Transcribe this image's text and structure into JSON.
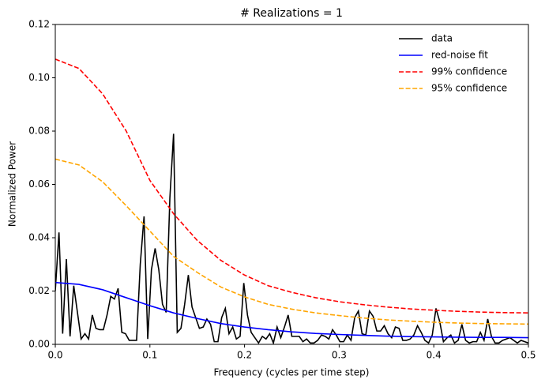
{
  "chart_data": {
    "type": "line",
    "title": "# Realizations = 1",
    "xlabel": "Frequency (cycles per time step)",
    "ylabel": "Normalized Power",
    "xlim": [
      0,
      0.5
    ],
    "ylim": [
      0,
      0.12
    ],
    "xticks": [
      {
        "value": 0,
        "label": "0.0"
      },
      0.1,
      0.2,
      0.3,
      0.4,
      0.5
    ],
    "yticks": [
      {
        "value": 0,
        "label": "0.00"
      },
      {
        "value": 0.02,
        "label": "0.02"
      },
      {
        "value": 0.04,
        "label": "0.04"
      },
      {
        "value": 0.06,
        "label": "0.06"
      },
      {
        "value": 0.08,
        "label": "0.08"
      },
      {
        "value": 0.1,
        "label": "0.10"
      },
      {
        "value": 0.12,
        "label": "0.12"
      }
    ],
    "grid": false,
    "legend": "upper right",
    "series": [
      {
        "name": "data",
        "color": "#000000",
        "dashed": false,
        "x": [
          0,
          0.0039,
          0.0078,
          0.0117,
          0.0156,
          0.0195,
          0.0234,
          0.0273,
          0.0313,
          0.0352,
          0.0391,
          0.043,
          0.0469,
          0.0508,
          0.0547,
          0.0586,
          0.0625,
          0.0664,
          0.0703,
          0.0742,
          0.0781,
          0.082,
          0.0859,
          0.0898,
          0.0938,
          0.0977,
          0.1016,
          0.1055,
          0.1094,
          0.1133,
          0.1172,
          0.1211,
          0.125,
          0.1289,
          0.1328,
          0.1367,
          0.1406,
          0.1445,
          0.1484,
          0.1523,
          0.1563,
          0.1602,
          0.1641,
          0.168,
          0.1719,
          0.1758,
          0.1797,
          0.1836,
          0.1875,
          0.1914,
          0.1953,
          0.1992,
          0.2031,
          0.207,
          0.2109,
          0.2148,
          0.2188,
          0.2227,
          0.2266,
          0.2305,
          0.2344,
          0.2383,
          0.2422,
          0.2461,
          0.25,
          0.2539,
          0.2578,
          0.2617,
          0.2656,
          0.2695,
          0.2734,
          0.2773,
          0.2813,
          0.2852,
          0.2891,
          0.293,
          0.2969,
          0.3008,
          0.3047,
          0.3086,
          0.3125,
          0.3164,
          0.3203,
          0.3242,
          0.3281,
          0.332,
          0.3359,
          0.3398,
          0.3438,
          0.3477,
          0.3516,
          0.3555,
          0.3594,
          0.3633,
          0.3672,
          0.3711,
          0.375,
          0.3789,
          0.3828,
          0.3867,
          0.3906,
          0.3945,
          0.3984,
          0.4023,
          0.4063,
          0.4102,
          0.4141,
          0.418,
          0.4219,
          0.4258,
          0.4297,
          0.4336,
          0.4375,
          0.4414,
          0.4453,
          0.4492,
          0.4531,
          0.457,
          0.4609,
          0.4648,
          0.4688,
          0.4727,
          0.4766,
          0.4805,
          0.4844,
          0.4883,
          0.4922,
          0.4961,
          0.5
        ],
        "values": [
          0.02,
          0.042,
          0.004,
          0.032,
          0.003,
          0.022,
          0.012,
          0.002,
          0.004,
          0.002,
          0.011,
          0.006,
          0.0055,
          0.0055,
          0.011,
          0.018,
          0.017,
          0.021,
          0.0045,
          0.004,
          0.0015,
          0.0015,
          0.0015,
          0.03,
          0.048,
          0.002,
          0.028,
          0.036,
          0.028,
          0.015,
          0.012,
          0.055,
          0.079,
          0.0045,
          0.006,
          0.015,
          0.026,
          0.014,
          0.01,
          0.006,
          0.0065,
          0.0095,
          0.0075,
          0.001,
          0.001,
          0.01,
          0.0135,
          0.004,
          0.0065,
          0.002,
          0.003,
          0.023,
          0.011,
          0.0045,
          0.0025,
          0.0005,
          0.003,
          0.002,
          0.004,
          0.0005,
          0.0065,
          0.0025,
          0.0065,
          0.011,
          0.003,
          0.003,
          0.003,
          0.001,
          0.002,
          0.0005,
          0.0005,
          0.0015,
          0.0035,
          0.003,
          0.002,
          0.0055,
          0.0035,
          0.001,
          0.001,
          0.0035,
          0.0015,
          0.01,
          0.0125,
          0.004,
          0.0035,
          0.0125,
          0.0105,
          0.005,
          0.005,
          0.007,
          0.004,
          0.0025,
          0.0065,
          0.006,
          0.0015,
          0.0015,
          0.002,
          0.0035,
          0.007,
          0.0045,
          0.0015,
          0.0005,
          0.0035,
          0.0135,
          0.0085,
          0.001,
          0.0025,
          0.0035,
          0.0005,
          0.0015,
          0.0075,
          0.0015,
          0.0005,
          0.001,
          0.001,
          0.0045,
          0.0015,
          0.0095,
          0.003,
          0.0005,
          0.0005,
          0.0015,
          0.002,
          0.0025,
          0.0015,
          0.0005,
          0.0015,
          0.001,
          0.0005
        ]
      },
      {
        "name": "red-noise fit",
        "color": "#0000ff",
        "dashed": false,
        "x": [
          0,
          0.025,
          0.05,
          0.075,
          0.1,
          0.125,
          0.15,
          0.175,
          0.2,
          0.225,
          0.25,
          0.275,
          0.3,
          0.325,
          0.35,
          0.375,
          0.4,
          0.425,
          0.45,
          0.475,
          0.5
        ],
        "values": [
          0.0232,
          0.0225,
          0.0205,
          0.0175,
          0.0145,
          0.0118,
          0.0097,
          0.0078,
          0.0065,
          0.0055,
          0.0047,
          0.0041,
          0.0037,
          0.0034,
          0.0031,
          0.0029,
          0.0028,
          0.0027,
          0.0026,
          0.0026,
          0.0025
        ]
      },
      {
        "name": "99% confidence",
        "color": "#ff0000",
        "dashed": true,
        "x": [
          0,
          0.025,
          0.05,
          0.075,
          0.1,
          0.125,
          0.15,
          0.175,
          0.2,
          0.225,
          0.25,
          0.275,
          0.3,
          0.325,
          0.35,
          0.375,
          0.4,
          0.425,
          0.45,
          0.475,
          0.5
        ],
        "values": [
          0.107,
          0.1035,
          0.094,
          0.08,
          0.0615,
          0.049,
          0.039,
          0.0315,
          0.026,
          0.022,
          0.0195,
          0.0175,
          0.016,
          0.0149,
          0.014,
          0.0133,
          0.0128,
          0.0124,
          0.0121,
          0.0119,
          0.0118
        ]
      },
      {
        "name": "95% confidence",
        "color": "#ffa500",
        "dashed": true,
        "x": [
          0,
          0.025,
          0.05,
          0.075,
          0.1,
          0.125,
          0.15,
          0.175,
          0.2,
          0.225,
          0.25,
          0.275,
          0.3,
          0.325,
          0.35,
          0.375,
          0.4,
          0.425,
          0.45,
          0.475,
          0.5
        ],
        "values": [
          0.0695,
          0.0673,
          0.061,
          0.052,
          0.0425,
          0.033,
          0.027,
          0.0215,
          0.0178,
          0.015,
          0.0132,
          0.0118,
          0.0108,
          0.0099,
          0.0092,
          0.0087,
          0.0083,
          0.008,
          0.0078,
          0.0077,
          0.0076
        ]
      }
    ]
  }
}
